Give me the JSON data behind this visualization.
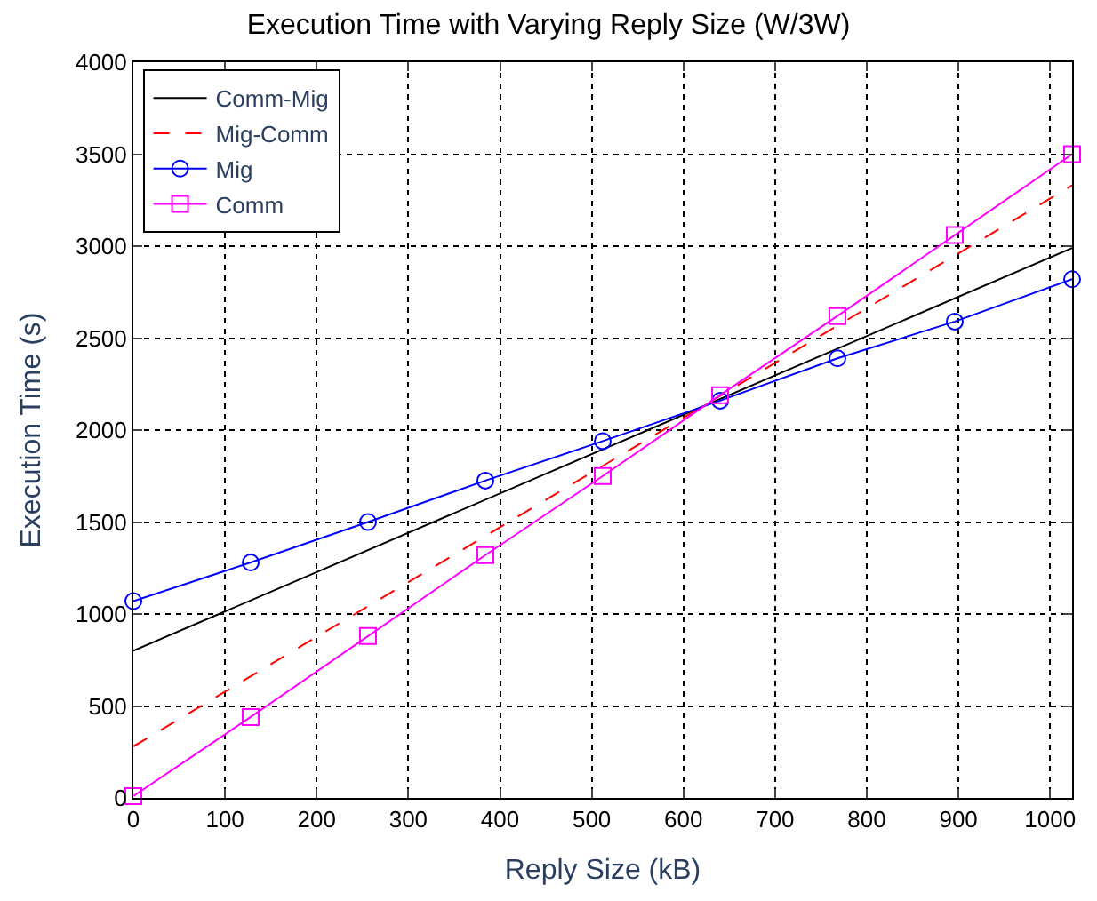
{
  "chart_data": {
    "type": "line",
    "title": "Execution Time with Varying Reply Size (W/3W)",
    "xlabel": "Reply Size (kB)",
    "ylabel": "Execution Time (s)",
    "xlim": [
      0,
      1024
    ],
    "xticks": [
      0,
      100,
      200,
      300,
      400,
      500,
      600,
      700,
      800,
      900,
      1000
    ],
    "ylim": [
      0,
      4000
    ],
    "yticks": [
      0,
      500,
      1000,
      1500,
      2000,
      2500,
      3000,
      3500,
      4000
    ],
    "grid": true,
    "legend": "top left",
    "series": [
      {
        "name": "Comm-Mig",
        "color": "#000000",
        "x": [
          0,
          1024
        ],
        "values": [
          800,
          2990
        ],
        "marker": "none",
        "line_style": "solid"
      },
      {
        "name": "Mig-Comm",
        "color": "#ff0000",
        "x": [
          0,
          1024
        ],
        "values": [
          280,
          3330
        ],
        "marker": "none",
        "line_style": "dashed"
      },
      {
        "name": "Mig",
        "color": "#0000ff",
        "x": [
          0,
          128,
          256,
          384,
          512,
          640,
          768,
          896,
          1024
        ],
        "values": [
          1070,
          1280,
          1500,
          1725,
          1940,
          2160,
          2390,
          2590,
          2820
        ],
        "marker": "circle",
        "line_style": "solid"
      },
      {
        "name": "Comm",
        "color": "#ff00ff",
        "x": [
          0,
          128,
          256,
          384,
          512,
          640,
          768,
          896,
          1024
        ],
        "values": [
          10,
          440,
          880,
          1320,
          1750,
          2190,
          2620,
          3060,
          3500
        ],
        "marker": "square",
        "line_style": "solid"
      }
    ]
  }
}
